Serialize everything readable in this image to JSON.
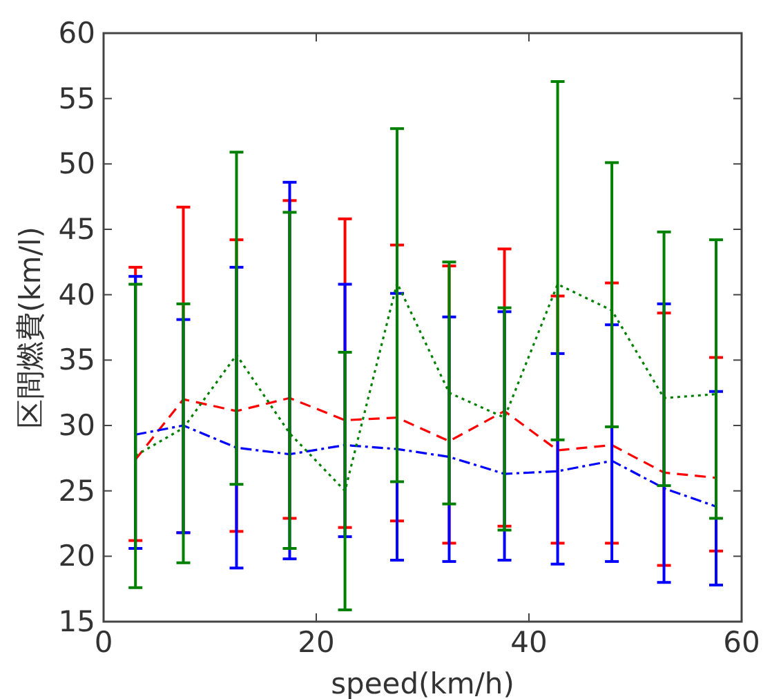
{
  "chart_data": {
    "type": "line",
    "xlabel": "speed(km/h)",
    "ylabel": "区間燃費(km/l)",
    "xlim": [
      0,
      60
    ],
    "ylim": [
      15,
      60
    ],
    "xticks": [
      0,
      20,
      40,
      60
    ],
    "yticks": [
      15,
      20,
      25,
      30,
      35,
      40,
      45,
      50,
      55,
      60
    ],
    "grid": false,
    "marker": "none",
    "x": [
      3,
      7.5,
      12.5,
      17.5,
      22.7,
      27.6,
      32.5,
      37.7,
      42.7,
      47.8,
      52.7,
      57.6
    ],
    "series": [
      {
        "color": "#ff0000",
        "line_style": "dashed",
        "values": [
          27.4,
          32.0,
          31.1,
          32.1,
          30.4,
          30.6,
          28.8,
          31.1,
          28.1,
          28.5,
          26.4,
          26.0
        ],
        "errors": [
          [
            21.2,
            42.1
          ],
          [
            21.8,
            46.7
          ],
          [
            21.9,
            44.2
          ],
          [
            22.9,
            47.2
          ],
          [
            22.2,
            45.8
          ],
          [
            22.7,
            43.8
          ],
          [
            21.0,
            42.2
          ],
          [
            22.3,
            43.5
          ],
          [
            21.0,
            39.9
          ],
          [
            21.0,
            40.9
          ],
          [
            19.3,
            38.6
          ],
          [
            20.4,
            35.2
          ]
        ]
      },
      {
        "color": "#0000ff",
        "line_style": "dashdot",
        "values": [
          29.3,
          30.0,
          28.3,
          27.8,
          28.5,
          28.2,
          27.6,
          26.3,
          26.5,
          27.3,
          25.2,
          23.8
        ],
        "errors": [
          [
            20.6,
            41.4
          ],
          [
            21.8,
            38.1
          ],
          [
            19.1,
            42.1
          ],
          [
            19.8,
            48.6
          ],
          [
            21.5,
            40.8
          ],
          [
            19.7,
            40.1
          ],
          [
            19.6,
            38.3
          ],
          [
            19.7,
            38.7
          ],
          [
            19.4,
            35.5
          ],
          [
            19.6,
            37.7
          ],
          [
            18.0,
            39.3
          ],
          [
            17.8,
            32.6
          ]
        ]
      },
      {
        "color": "#008000",
        "line_style": "dotted",
        "values": [
          27.7,
          29.8,
          35.4,
          29.4,
          25.0,
          40.9,
          32.5,
          30.6,
          40.8,
          38.8,
          32.1,
          32.4
        ],
        "errors": [
          [
            17.6,
            40.8
          ],
          [
            19.5,
            39.3
          ],
          [
            25.5,
            50.9
          ],
          [
            20.6,
            46.3
          ],
          [
            15.9,
            35.6
          ],
          [
            25.7,
            52.7
          ],
          [
            24.0,
            42.5
          ],
          [
            22.0,
            39.0
          ],
          [
            28.9,
            56.3
          ],
          [
            29.9,
            50.1
          ],
          [
            25.4,
            44.8
          ],
          [
            22.9,
            44.2
          ]
        ]
      }
    ]
  }
}
